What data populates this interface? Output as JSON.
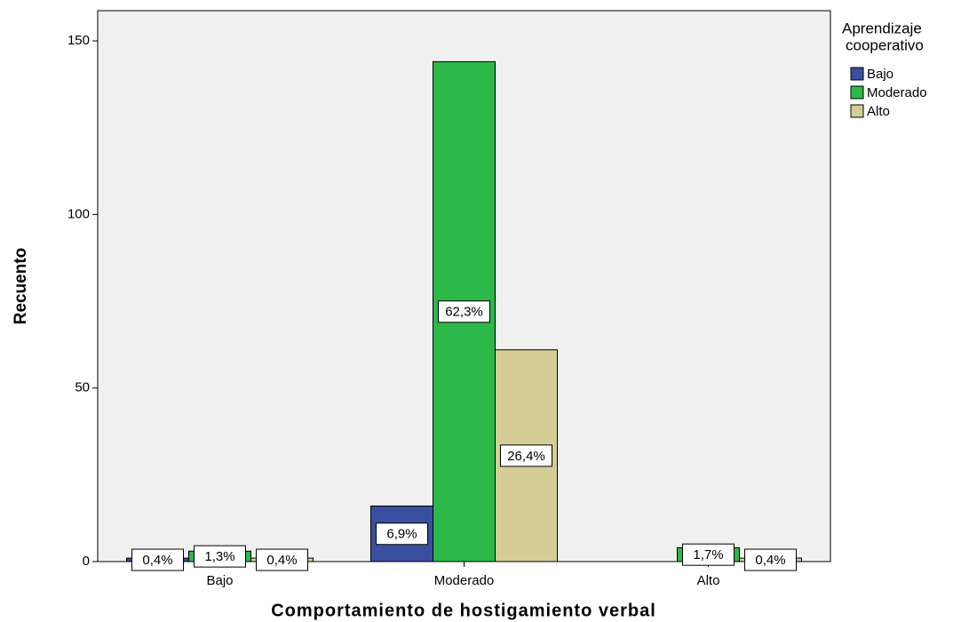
{
  "chart_data": {
    "type": "bar",
    "x_label": "Comportamiento de hostigamiento verbal",
    "y_label": "Recuento",
    "legend_title": [
      "Aprendizaje",
      "cooperativo"
    ],
    "categories": [
      "Bajo",
      "Moderado",
      "Alto"
    ],
    "series": [
      {
        "name": "Bajo",
        "color": "#3a4fa0",
        "values": [
          1,
          16,
          null
        ],
        "data_labels": [
          "0,4%",
          "6,9%",
          null
        ]
      },
      {
        "name": "Moderado",
        "color": "#2db84a",
        "values": [
          3,
          144,
          4
        ],
        "data_labels": [
          "1,3%",
          "62,3%",
          "1,7%"
        ]
      },
      {
        "name": "Alto",
        "color": "#d4cd96",
        "values": [
          1,
          61,
          1
        ],
        "data_labels": [
          "0,4%",
          "26,4%",
          "0,4%"
        ]
      }
    ],
    "ylim": [
      0,
      158.7
    ],
    "yticks": [
      0,
      50,
      100,
      150
    ],
    "legend": "right"
  }
}
